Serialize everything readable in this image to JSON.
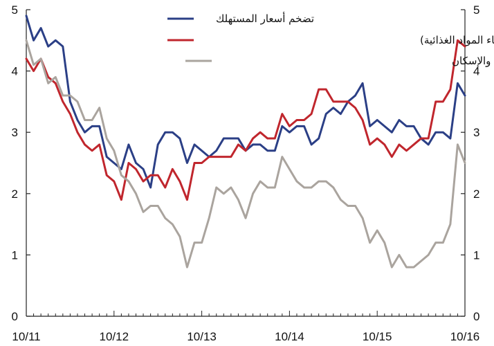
{
  "chart_data": {
    "type": "line",
    "title": "",
    "xlabel": "",
    "ylabel": "",
    "ylim": [
      0,
      5
    ],
    "y_ticks": [
      0,
      1,
      2,
      3,
      4,
      5
    ],
    "y_axis_sides": [
      "left",
      "right"
    ],
    "x_tick_labels": [
      "10/11",
      "10/12",
      "10/13",
      "10/14",
      "10/15",
      "10/16"
    ],
    "x_start": "10/11",
    "x_end": "10/16",
    "frequency": "monthly",
    "grid": false,
    "legend_position": "top-right",
    "series": [
      {
        "name": "تضخم أسعار المستهلك",
        "color": "#2b3f86",
        "values": [
          4.9,
          4.5,
          4.7,
          4.4,
          4.5,
          4.4,
          3.5,
          3.2,
          3.0,
          3.1,
          3.1,
          2.6,
          2.5,
          2.4,
          2.8,
          2.5,
          2.4,
          2.1,
          2.8,
          3.0,
          3.0,
          2.9,
          2.5,
          2.8,
          2.7,
          2.6,
          2.7,
          2.9,
          2.9,
          2.9,
          2.7,
          2.8,
          2.8,
          2.7,
          2.7,
          3.1,
          3.0,
          3.1,
          3.1,
          2.8,
          2.9,
          3.3,
          3.4,
          3.3,
          3.5,
          3.6,
          3.8,
          3.1,
          3.2,
          3.1,
          3.0,
          3.2,
          3.1,
          3.1,
          2.9,
          2.8,
          3.0,
          3.0,
          2.9,
          3.8,
          3.6
        ]
      },
      {
        "name": "التضخم الأساس (أي باستثناء المواد الغذائية)",
        "color": "#c0262d",
        "values": [
          4.2,
          4.0,
          4.2,
          3.9,
          3.8,
          3.5,
          3.3,
          3.0,
          2.8,
          2.7,
          2.8,
          2.3,
          2.2,
          1.9,
          2.5,
          2.4,
          2.2,
          2.3,
          2.3,
          2.1,
          2.4,
          2.2,
          1.9,
          2.5,
          2.5,
          2.6,
          2.6,
          2.6,
          2.6,
          2.8,
          2.7,
          2.9,
          3.0,
          2.9,
          2.9,
          3.3,
          3.1,
          3.2,
          3.2,
          3.3,
          3.7,
          3.7,
          3.5,
          3.5,
          3.5,
          3.4,
          3.2,
          2.8,
          2.9,
          2.8,
          2.6,
          2.8,
          2.7,
          2.8,
          2.9,
          2.9,
          3.5,
          3.5,
          3.7,
          4.5,
          4.4
        ]
      },
      {
        "name": "تضخم أسعار المستهلك باستثناء المواد الغذائية والإسكان",
        "color": "#aaa49e",
        "values": [
          4.5,
          4.1,
          4.2,
          3.8,
          3.9,
          3.6,
          3.6,
          3.5,
          3.2,
          3.2,
          3.4,
          2.9,
          2.7,
          2.3,
          2.2,
          2.0,
          1.7,
          1.8,
          1.8,
          1.6,
          1.5,
          1.3,
          0.8,
          1.2,
          1.2,
          1.6,
          2.1,
          2.0,
          2.1,
          1.9,
          1.6,
          2.0,
          2.2,
          2.1,
          2.1,
          2.6,
          2.4,
          2.2,
          2.1,
          2.1,
          2.2,
          2.2,
          2.1,
          1.9,
          1.8,
          1.8,
          1.6,
          1.2,
          1.4,
          1.2,
          0.8,
          1.0,
          0.8,
          0.8,
          0.9,
          1.0,
          1.2,
          1.2,
          1.5,
          2.8,
          2.5
        ]
      }
    ]
  }
}
